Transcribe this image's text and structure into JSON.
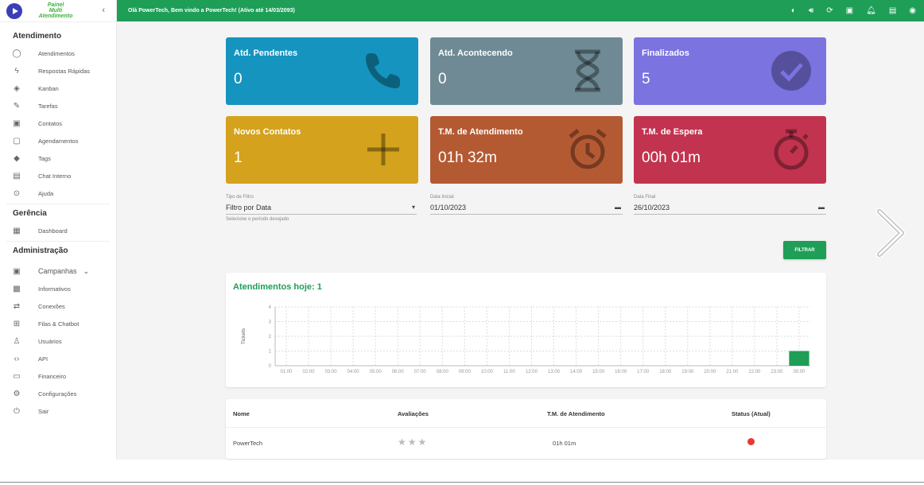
{
  "app": {
    "logo_line1": "Painel",
    "logo_line2": "Multi",
    "logo_line3": "Atendimento",
    "greeting": "Olá PowerTech, Bem vindo a PowerTech! (Ativo até 14/03/2093)"
  },
  "sidebar": {
    "section1": "Atendimento",
    "items1": [
      {
        "label": "Atendimentos",
        "icon": "whatsapp-icon"
      },
      {
        "label": "Respostas Rápidas",
        "icon": "flash-icon"
      },
      {
        "label": "Kanban",
        "icon": "kanban-icon"
      },
      {
        "label": "Tarefas",
        "icon": "pencil-icon"
      },
      {
        "label": "Contatos",
        "icon": "contacts-icon"
      },
      {
        "label": "Agendamentos",
        "icon": "calendar-icon"
      },
      {
        "label": "Tags",
        "icon": "tag-icon"
      },
      {
        "label": "Chat Interno",
        "icon": "chat-icon"
      },
      {
        "label": "Ajuda",
        "icon": "help-icon"
      }
    ],
    "section2": "Gerência",
    "items2": [
      {
        "label": "Dashboard",
        "icon": "dashboard-icon"
      }
    ],
    "section3": "Administração",
    "items3": [
      {
        "label": "Campanhas",
        "icon": "campaign-icon"
      },
      {
        "label": "Informativos",
        "icon": "announcement-icon"
      },
      {
        "label": "Conexões",
        "icon": "sync-icon"
      },
      {
        "label": "Filas & Chatbot",
        "icon": "queue-icon"
      },
      {
        "label": "Usuários",
        "icon": "users-icon"
      },
      {
        "label": "API",
        "icon": "code-icon"
      },
      {
        "label": "Financeiro",
        "icon": "money-icon"
      },
      {
        "label": "Configurações",
        "icon": "gear-icon"
      },
      {
        "label": "Sair",
        "icon": "power-icon"
      }
    ]
  },
  "cards": [
    {
      "title": "Atd. Pendentes",
      "value": "0",
      "color": "#1594bf",
      "icon": "phone-icon"
    },
    {
      "title": "Atd. Acontecendo",
      "value": "0",
      "color": "#6f8a95",
      "icon": "hourglass-icon"
    },
    {
      "title": "Finalizados",
      "value": "5",
      "color": "#7b73e0",
      "icon": "check-circle-icon"
    },
    {
      "title": "Novos Contatos",
      "value": "1",
      "color": "#d4a21c",
      "icon": "plus-icon"
    },
    {
      "title": "T.M. de Atendimento",
      "value": "01h 32m",
      "color": "#b45a33",
      "icon": "alarm-icon"
    },
    {
      "title": "T.M. de Espera",
      "value": "00h 01m",
      "color": "#c2334f",
      "icon": "timer-icon"
    }
  ],
  "filters": {
    "type_label": "Tipo de Filtro",
    "type_value": "Filtro por Data",
    "type_hint": "Selecione o período desejado",
    "start_label": "Data Inicial",
    "start_value": "01/10/2023",
    "end_label": "Data Final",
    "end_value": "26/10/2023",
    "button": "FILTRAR"
  },
  "chart_data": {
    "type": "bar",
    "title": "Atendimentos hoje: 1",
    "ylabel": "Tickets",
    "xlabel": "",
    "ylim": [
      0,
      4
    ],
    "yticks": [
      "0",
      "1",
      "2",
      "3",
      "4"
    ],
    "categories": [
      "01:00",
      "02:00",
      "03:00",
      "04:00",
      "05:00",
      "06:00",
      "07:00",
      "08:00",
      "09:00",
      "10:00",
      "11:00",
      "12:00",
      "13:00",
      "14:00",
      "15:00",
      "16:00",
      "17:00",
      "18:00",
      "19:00",
      "20:00",
      "21:00",
      "22:00",
      "23:00",
      "00:00"
    ],
    "values": [
      0,
      0,
      0,
      0,
      0,
      0,
      0,
      0,
      0,
      0,
      0,
      0,
      0,
      0,
      0,
      0,
      0,
      0,
      0,
      0,
      0,
      0,
      0,
      1
    ],
    "grid": true,
    "bar_color": "#1e9e56"
  },
  "table": {
    "headers": [
      "Nome",
      "Avaliações",
      "T.M. de Atendimento",
      "Status (Atual)"
    ],
    "rows": [
      {
        "name": "PowerTech",
        "rating": "★★★",
        "time": "01h 01m",
        "status_color": "#e53935"
      }
    ]
  }
}
